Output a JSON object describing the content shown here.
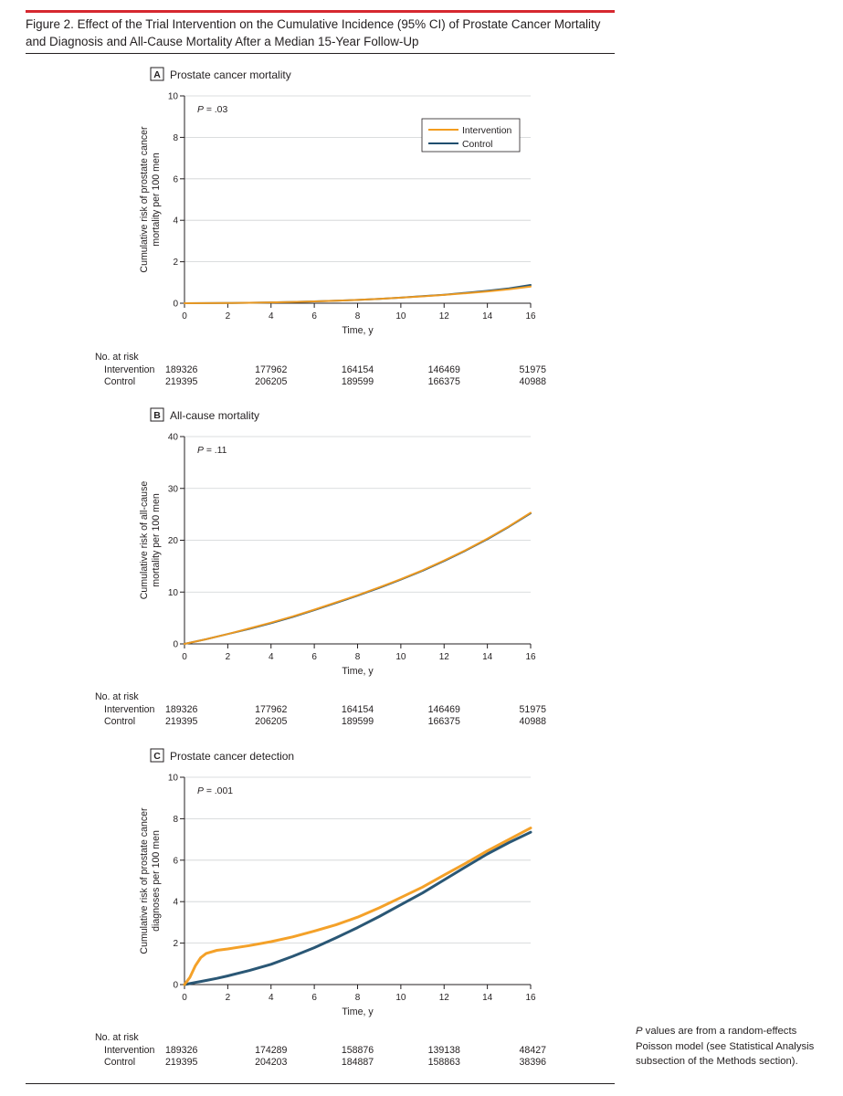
{
  "figure": {
    "title": "Figure 2. Effect of the Trial Intervention on the Cumulative Incidence (95% CI) of Prostate Cancer Mortality and Diagnosis and All-Cause Mortality After a Median 15-Year Follow-Up",
    "footnote_p": "P",
    "footnote_rest": " values are from a random-effects Poisson model (see Statistical Analysis subsection of the Methods section).",
    "colors": {
      "intervention": "#f39c1e",
      "control": "#1f4e6e",
      "accent": "#d6282f"
    }
  },
  "chart_data": [
    {
      "type": "line",
      "panel_letter": "A",
      "title": "Prostate cancer mortality",
      "xlabel": "Time, y",
      "ylabel_line1": "Cumulative risk of prostate cancer",
      "ylabel_line2": "mortality per 100 men",
      "xlim": [
        0,
        16
      ],
      "ylim": [
        0,
        10
      ],
      "xticks": [
        0,
        2,
        4,
        6,
        8,
        10,
        12,
        14,
        16
      ],
      "yticks": [
        0,
        2,
        4,
        6,
        8,
        10
      ],
      "p_label": "P",
      "p_value": " = .03",
      "legend": {
        "position": "top-right",
        "entries": [
          "Intervention",
          "Control"
        ]
      },
      "x": [
        0,
        1,
        2,
        3,
        4,
        5,
        6,
        7,
        8,
        9,
        10,
        11,
        12,
        13,
        14,
        15,
        16
      ],
      "series": [
        {
          "name": "Intervention",
          "values": [
            0,
            0.005,
            0.01,
            0.02,
            0.04,
            0.06,
            0.09,
            0.12,
            0.16,
            0.21,
            0.27,
            0.33,
            0.4,
            0.48,
            0.57,
            0.67,
            0.8
          ]
        },
        {
          "name": "Control",
          "values": [
            0,
            0.005,
            0.01,
            0.02,
            0.04,
            0.06,
            0.09,
            0.12,
            0.16,
            0.21,
            0.27,
            0.34,
            0.41,
            0.5,
            0.6,
            0.72,
            0.88
          ]
        }
      ],
      "at_risk": {
        "title": "No. at risk",
        "rows": [
          {
            "label": "Intervention",
            "values": [
              "189326",
              "177962",
              "164154",
              "146469",
              "51975"
            ]
          },
          {
            "label": "Control",
            "values": [
              "219395",
              "206205",
              "189599",
              "166375",
              "40988"
            ]
          }
        ]
      }
    },
    {
      "type": "line",
      "panel_letter": "B",
      "title": "All-cause mortality",
      "xlabel": "Time, y",
      "ylabel_line1": "Cumulative risk of all-cause",
      "ylabel_line2": "mortality per 100 men",
      "xlim": [
        0,
        16
      ],
      "ylim": [
        0,
        40
      ],
      "xticks": [
        0,
        2,
        4,
        6,
        8,
        10,
        12,
        14,
        16
      ],
      "yticks": [
        0,
        10,
        20,
        30,
        40
      ],
      "p_label": "P",
      "p_value": " = .11",
      "x": [
        0,
        1,
        2,
        3,
        4,
        5,
        6,
        7,
        8,
        9,
        10,
        11,
        12,
        13,
        14,
        15,
        16
      ],
      "series": [
        {
          "name": "Intervention",
          "values": [
            0,
            0.9,
            1.9,
            3.0,
            4.1,
            5.3,
            6.6,
            8.0,
            9.4,
            10.9,
            12.5,
            14.2,
            16.1,
            18.1,
            20.3,
            22.7,
            25.3
          ]
        },
        {
          "name": "Control",
          "values": [
            0,
            0.9,
            1.9,
            2.9,
            4.0,
            5.2,
            6.5,
            7.9,
            9.3,
            10.8,
            12.4,
            14.1,
            16.0,
            18.0,
            20.2,
            22.6,
            25.2
          ]
        }
      ],
      "at_risk": {
        "title": "No. at risk",
        "rows": [
          {
            "label": "Intervention",
            "values": [
              "189326",
              "177962",
              "164154",
              "146469",
              "51975"
            ]
          },
          {
            "label": "Control",
            "values": [
              "219395",
              "206205",
              "189599",
              "166375",
              "40988"
            ]
          }
        ]
      }
    },
    {
      "type": "line",
      "panel_letter": "C",
      "title": "Prostate cancer detection",
      "xlabel": "Time, y",
      "ylabel_line1": "Cumulative risk of prostate cancer",
      "ylabel_line2": "diagnoses per 100 men",
      "xlim": [
        0,
        16
      ],
      "ylim": [
        0,
        10
      ],
      "xticks": [
        0,
        2,
        4,
        6,
        8,
        10,
        12,
        14,
        16
      ],
      "yticks": [
        0,
        2,
        4,
        6,
        8,
        10
      ],
      "p_label": "P",
      "p_value": " = .001",
      "x": [
        0,
        0.25,
        0.5,
        0.75,
        1,
        1.5,
        2,
        3,
        4,
        5,
        6,
        7,
        8,
        9,
        10,
        11,
        12,
        13,
        14,
        15,
        16
      ],
      "series": [
        {
          "name": "Intervention",
          "values": [
            0,
            0.35,
            0.9,
            1.3,
            1.5,
            1.65,
            1.72,
            1.88,
            2.07,
            2.3,
            2.58,
            2.88,
            3.25,
            3.7,
            4.2,
            4.7,
            5.28,
            5.85,
            6.45,
            7.0,
            7.55
          ]
        },
        {
          "name": "Control",
          "values": [
            0,
            0.05,
            0.1,
            0.15,
            0.2,
            0.3,
            0.42,
            0.68,
            0.98,
            1.36,
            1.78,
            2.25,
            2.75,
            3.28,
            3.85,
            4.42,
            5.05,
            5.68,
            6.3,
            6.85,
            7.35
          ]
        }
      ],
      "at_risk": {
        "title": "No. at risk",
        "rows": [
          {
            "label": "Intervention",
            "values": [
              "189326",
              "174289",
              "158876",
              "139138",
              "48427"
            ]
          },
          {
            "label": "Control",
            "values": [
              "219395",
              "204203",
              "184887",
              "158863",
              "38396"
            ]
          }
        ]
      }
    }
  ]
}
